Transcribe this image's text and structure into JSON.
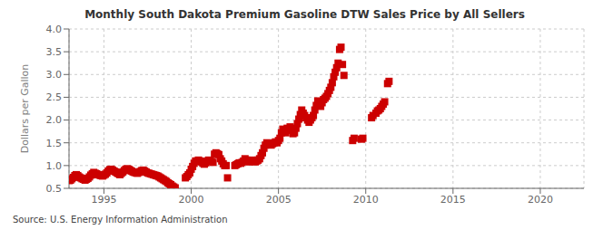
{
  "chart_data": {
    "type": "scatter",
    "title": "Monthly South Dakota Premium Gasoline DTW Sales Price by All Sellers",
    "y_label": "Dollars per Gallon",
    "annotations": [
      "Source: U.S. Energy Information Administration"
    ],
    "color": "#cc0000",
    "marker": "square",
    "grid": true,
    "xlim": [
      1993.0,
      2022.5
    ],
    "ylim": [
      0.5,
      4.0
    ],
    "xticks": [
      1995,
      2000,
      2005,
      2010,
      2015,
      2020
    ],
    "yticks": [
      0.5,
      {
        "value": 1.0,
        "label": "1.0"
      },
      1.5,
      {
        "value": 2.0,
        "label": "2.0"
      },
      2.5,
      {
        "value": 3.0,
        "label": "3.0"
      },
      3.5,
      {
        "value": 4.0,
        "label": "4.0"
      }
    ],
    "x": [
      1993.0,
      1993.083,
      1993.167,
      1993.25,
      1993.333,
      1993.417,
      1993.5,
      1993.583,
      1993.667,
      1993.75,
      1993.833,
      1993.917,
      1994.0,
      1994.083,
      1994.167,
      1994.25,
      1994.333,
      1994.417,
      1994.5,
      1994.583,
      1994.667,
      1994.75,
      1994.833,
      1994.917,
      1995.0,
      1995.083,
      1995.167,
      1995.25,
      1995.333,
      1995.417,
      1995.5,
      1995.583,
      1995.667,
      1995.75,
      1995.833,
      1995.917,
      1996.0,
      1996.083,
      1996.167,
      1996.25,
      1996.333,
      1996.417,
      1996.5,
      1996.583,
      1996.667,
      1996.75,
      1996.833,
      1996.917,
      1997.0,
      1997.083,
      1997.167,
      1997.25,
      1997.333,
      1997.417,
      1997.5,
      1997.583,
      1997.667,
      1997.75,
      1997.833,
      1997.917,
      1998.0,
      1998.083,
      1998.167,
      1998.25,
      1998.333,
      1998.417,
      1998.5,
      1998.583,
      1998.667,
      1998.75,
      1998.833,
      1998.917,
      1999.0,
      1999.083,
      1999.667,
      1999.75,
      1999.833,
      1999.917,
      2000.0,
      2000.083,
      2000.167,
      2000.25,
      2000.333,
      2000.417,
      2000.5,
      2000.583,
      2000.667,
      2000.75,
      2000.833,
      2000.917,
      2001.0,
      2001.083,
      2001.167,
      2001.25,
      2001.333,
      2001.417,
      2001.5,
      2001.583,
      2001.667,
      2001.75,
      2001.833,
      2001.917,
      2002.0,
      2002.083,
      2002.5,
      2002.583,
      2002.667,
      2002.75,
      2002.833,
      2002.917,
      2003.0,
      2003.083,
      2003.167,
      2003.25,
      2003.333,
      2003.417,
      2003.5,
      2003.583,
      2003.667,
      2003.75,
      2003.833,
      2003.917,
      2004.0,
      2004.083,
      2004.167,
      2004.25,
      2004.333,
      2004.417,
      2004.5,
      2004.583,
      2004.667,
      2004.75,
      2004.833,
      2004.917,
      2005.0,
      2005.083,
      2005.167,
      2005.25,
      2005.333,
      2005.417,
      2005.5,
      2005.583,
      2005.667,
      2005.75,
      2005.833,
      2005.917,
      2006.0,
      2006.083,
      2006.167,
      2006.25,
      2006.333,
      2006.417,
      2006.5,
      2006.583,
      2006.667,
      2006.75,
      2006.833,
      2006.917,
      2007.0,
      2007.083,
      2007.167,
      2007.25,
      2007.333,
      2007.417,
      2007.5,
      2007.583,
      2007.667,
      2007.75,
      2007.833,
      2007.917,
      2008.0,
      2008.083,
      2008.167,
      2008.25,
      2008.333,
      2008.417,
      2008.5,
      2008.583,
      2008.667,
      2008.75,
      2009.25,
      2009.333,
      2009.75,
      2009.833,
      2010.333,
      2010.417,
      2010.583,
      2010.667,
      2010.75,
      2010.833,
      2010.917,
      2011.0,
      2011.083,
      2011.25,
      2011.333
    ],
    "values": [
      0.67,
      0.68,
      0.71,
      0.74,
      0.78,
      0.8,
      0.78,
      0.75,
      0.73,
      0.71,
      0.7,
      0.68,
      0.7,
      0.72,
      0.75,
      0.79,
      0.82,
      0.85,
      0.83,
      0.82,
      0.8,
      0.79,
      0.78,
      0.77,
      0.79,
      0.81,
      0.84,
      0.88,
      0.91,
      0.92,
      0.9,
      0.88,
      0.86,
      0.84,
      0.82,
      0.8,
      0.83,
      0.86,
      0.89,
      0.92,
      0.93,
      0.92,
      0.9,
      0.88,
      0.86,
      0.85,
      0.84,
      0.83,
      0.85,
      0.87,
      0.89,
      0.9,
      0.88,
      0.86,
      0.84,
      0.83,
      0.82,
      0.81,
      0.8,
      0.79,
      0.78,
      0.77,
      0.75,
      0.73,
      0.71,
      0.69,
      0.67,
      0.65,
      0.62,
      0.6,
      0.58,
      0.55,
      0.53,
      0.51,
      0.73,
      0.76,
      0.8,
      0.84,
      0.92,
      0.98,
      1.05,
      1.1,
      1.1,
      1.12,
      1.1,
      1.08,
      1.05,
      1.03,
      1.06,
      1.1,
      1.12,
      1.1,
      1.09,
      1.07,
      1.25,
      1.28,
      1.26,
      1.24,
      1.15,
      1.1,
      1.04,
      1.0,
      1.0,
      0.73,
      1.0,
      1.02,
      1.04,
      1.06,
      1.05,
      1.07,
      1.1,
      1.15,
      1.12,
      1.1,
      1.08,
      1.1,
      1.12,
      1.1,
      1.08,
      1.1,
      1.12,
      1.15,
      1.22,
      1.28,
      1.38,
      1.45,
      1.5,
      1.48,
      1.46,
      1.45,
      1.48,
      1.5,
      1.52,
      1.5,
      1.55,
      1.6,
      1.72,
      1.8,
      1.75,
      1.72,
      1.82,
      1.78,
      1.85,
      1.78,
      1.7,
      1.72,
      1.82,
      1.92,
      2.02,
      2.12,
      2.22,
      2.15,
      2.1,
      2.05,
      2.0,
      1.95,
      2.0,
      2.05,
      2.1,
      2.22,
      2.32,
      2.42,
      2.35,
      2.3,
      2.38,
      2.45,
      2.48,
      2.52,
      2.58,
      2.65,
      2.72,
      2.82,
      2.95,
      3.05,
      3.15,
      3.25,
      3.55,
      3.6,
      3.22,
      2.98,
      1.55,
      1.6,
      1.58,
      1.6,
      2.05,
      2.1,
      2.15,
      2.2,
      2.22,
      2.25,
      2.3,
      2.35,
      2.4,
      2.8,
      2.85
    ]
  }
}
